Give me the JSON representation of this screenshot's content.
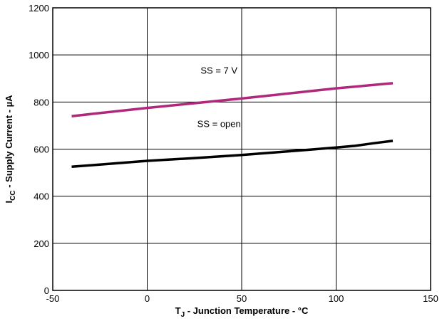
{
  "chart_data": {
    "type": "line",
    "title": "",
    "xlabel": {
      "main": "T",
      "sub": "J",
      "rest": " - Junction Temperature - °C"
    },
    "ylabel": {
      "main": "I",
      "sub": "CC",
      "rest": " - Supply Current - µA"
    },
    "xlim": [
      -50,
      150
    ],
    "ylim": [
      0,
      1200
    ],
    "xticks": [
      -50,
      0,
      50,
      100,
      150
    ],
    "yticks": [
      0,
      200,
      400,
      600,
      800,
      1000,
      1200
    ],
    "grid": true,
    "series": [
      {
        "name": "SS = 7 V",
        "color": "#b0287c",
        "x": [
          -40,
          0,
          25,
          50,
          85,
          100,
          130
        ],
        "y": [
          740,
          775,
          795,
          815,
          845,
          858,
          880
        ]
      },
      {
        "name": "SS = open",
        "color": "#000000",
        "x": [
          -40,
          0,
          25,
          50,
          85,
          100,
          110,
          120,
          130
        ],
        "y": [
          525,
          550,
          562,
          575,
          597,
          607,
          614,
          625,
          635
        ]
      }
    ]
  }
}
